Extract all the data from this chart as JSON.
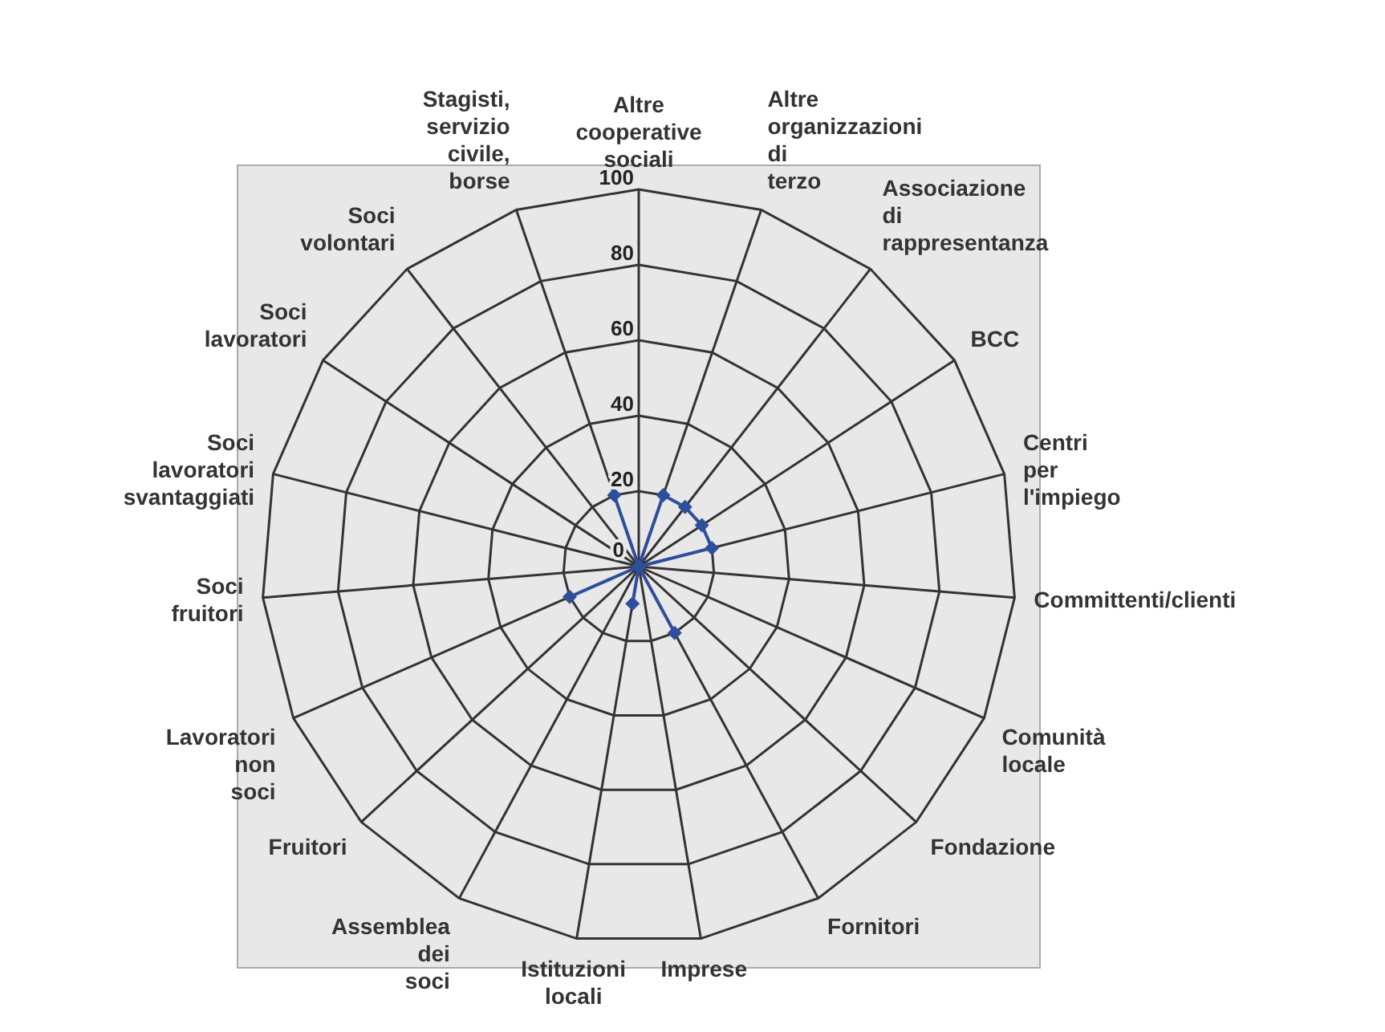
{
  "chart_data": {
    "type": "radar",
    "categories": [
      "Altre cooperative sociali",
      "Altre organizzazioni di terzo",
      "Associazione di rappresentanza",
      "BCC",
      "Centri per l'impiego",
      "Committenti/clienti",
      "Comunità locale",
      "Fondazione",
      "Fornitori",
      "Imprese",
      "Istituzioni locali",
      "Assemblea dei soci",
      "Fruitori",
      "Lavoratori non soci",
      "Soci fruitori",
      "Soci lavoratori svantaggiati",
      "Soci lavoratori",
      "Soci volontari",
      "Stagisti, servizio civile, borse"
    ],
    "series": [
      {
        "color": "#2e4f9c",
        "values": [
          0,
          20,
          20,
          20,
          20,
          0,
          0,
          0,
          20,
          0,
          10,
          0,
          0,
          20,
          0,
          0,
          0,
          0,
          20
        ]
      }
    ],
    "ylim": [
      0,
      100
    ],
    "yticks": [
      0,
      20,
      40,
      60,
      80,
      100
    ],
    "grid": true,
    "marker": "diamond",
    "line_style": "solid"
  }
}
